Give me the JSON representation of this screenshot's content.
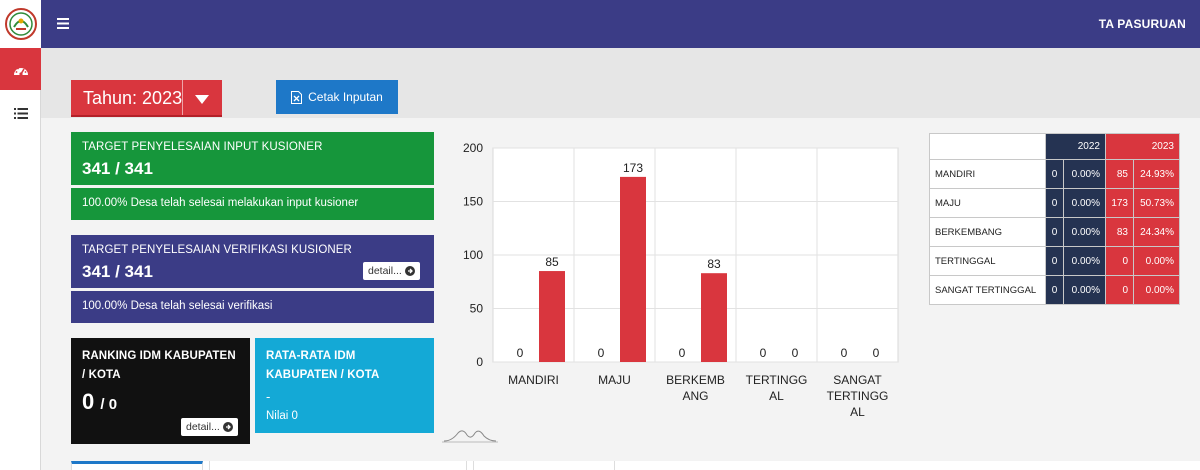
{
  "header": {
    "user_name": "TA PASURUAN"
  },
  "sidebar": {
    "items": [
      {
        "icon": "dashboard-icon",
        "active": true
      },
      {
        "icon": "list-icon",
        "active": false
      }
    ]
  },
  "toolbar": {
    "year_select": {
      "value": "Tahun: 2023"
    },
    "print_label": "Cetak Inputan"
  },
  "cards": {
    "input": {
      "title": "TARGET PENYELESAIAN INPUT KUSIONER",
      "value": "341 / 341",
      "note": "100.00% Desa telah selesai melakukan input kusioner"
    },
    "verifikasi": {
      "title": "TARGET PENYELESAIAN VERIFIKASI KUSIONER",
      "value": "341 / 341",
      "detail_label": "detail...",
      "note": "100.00% Desa telah selesai verifikasi"
    },
    "ranking": {
      "title": "RANKING IDM KABUPATEN / KOTA",
      "rank": "0",
      "total": "/ 0",
      "detail_label": "detail..."
    },
    "rata": {
      "title": "RATA-RATA IDM KABUPATEN / KOTA",
      "value": "-",
      "nilai": "Nilai 0"
    }
  },
  "chart_data": {
    "type": "bar",
    "categories": [
      "MANDIRI",
      "MAJU",
      "BERKEMBANG",
      "TERTINGGAL",
      "SANGAT TERTINGGAL"
    ],
    "category_lines": [
      [
        "MANDIRI"
      ],
      [
        "MAJU"
      ],
      [
        "BERKEMB",
        "ANG"
      ],
      [
        "TERTINGG",
        "AL"
      ],
      [
        "SANGAT",
        "TERTINGG",
        "AL"
      ]
    ],
    "series": [
      {
        "name": "2022",
        "values": [
          0,
          0,
          0,
          0,
          0
        ],
        "color": "#253352"
      },
      {
        "name": "2023",
        "values": [
          85,
          173,
          83,
          0,
          0
        ],
        "color": "#d9363e"
      }
    ],
    "ylim": [
      0,
      200
    ],
    "yticks": [
      0,
      50,
      100,
      150,
      200
    ],
    "grid": true
  },
  "stats_table": {
    "headers": [
      "2022",
      "2023"
    ],
    "rows": [
      {
        "label": "MANDIRI",
        "n2022": "0",
        "p2022": "0.00%",
        "n2023": "85",
        "p2023": "24.93%"
      },
      {
        "label": "MAJU",
        "n2022": "0",
        "p2022": "0.00%",
        "n2023": "173",
        "p2023": "50.73%"
      },
      {
        "label": "BERKEMBANG",
        "n2022": "0",
        "p2022": "0.00%",
        "n2023": "83",
        "p2023": "24.34%"
      },
      {
        "label": "TERTINGGAL",
        "n2022": "0",
        "p2022": "0.00%",
        "n2023": "0",
        "p2023": "0.00%"
      },
      {
        "label": "SANGAT TERTINGGAL",
        "n2022": "0",
        "p2022": "0.00%",
        "n2023": "0",
        "p2023": "0.00%"
      }
    ]
  },
  "colors": {
    "navy": "#3b3c86",
    "red": "#d9363e",
    "green": "#16963b",
    "cyan": "#14a9d6",
    "blue": "#1e78c8",
    "dark_navy": "#253352"
  }
}
